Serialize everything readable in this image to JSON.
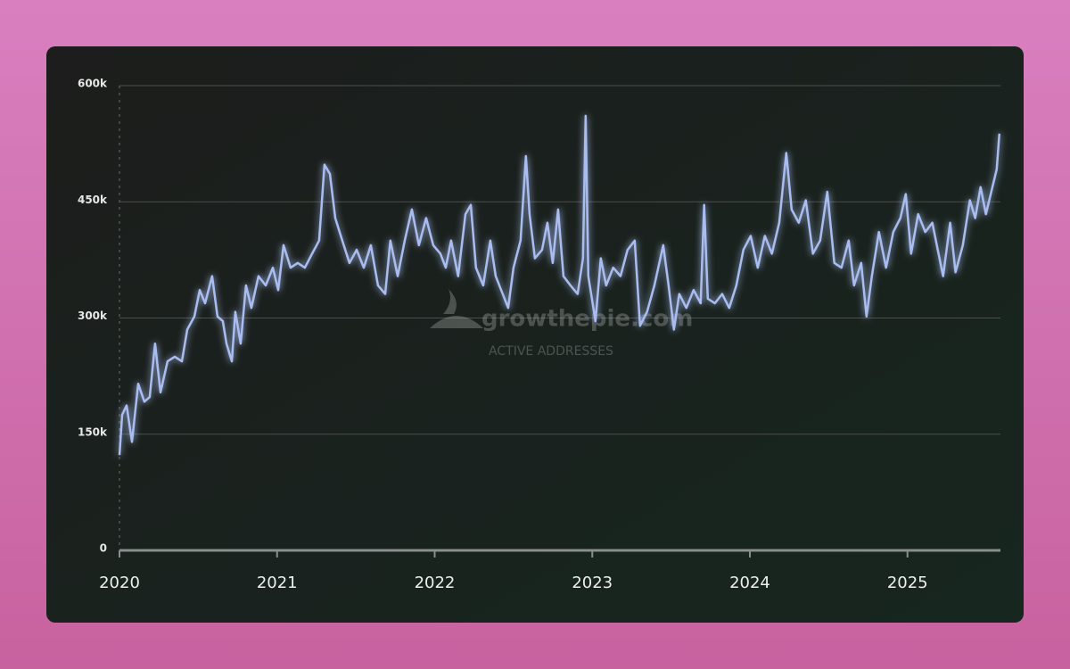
{
  "chart_data": {
    "type": "line",
    "watermark": {
      "brand": "growthepie.com",
      "metric": "ACTIVE ADDRESSES"
    },
    "color": "#a9bdf0",
    "xlim": [
      2020,
      2025.59
    ],
    "xticks": [
      2020,
      2021,
      2022,
      2023,
      2024,
      2025
    ],
    "ylim": [
      0,
      600000
    ],
    "yticks": [
      0,
      {
        "value": 150000,
        "label": "150k"
      },
      {
        "value": 300000,
        "label": "300k"
      },
      {
        "value": 450000,
        "label": "450k"
      },
      {
        "value": 600000,
        "label": "600k"
      }
    ],
    "grid": true,
    "x": [
      2020,
      2020.017,
      2020.045,
      2020.079,
      2020.119,
      2020.158,
      2020.192,
      2020.226,
      2020.26,
      2020.305,
      2020.351,
      2020.396,
      2020.43,
      2020.475,
      2020.509,
      2020.543,
      2020.588,
      2020.622,
      2020.656,
      2020.679,
      2020.713,
      2020.735,
      2020.769,
      2020.803,
      2020.837,
      2020.882,
      2020.928,
      2020.973,
      2021.007,
      2021.041,
      2021.086,
      2021.131,
      2021.176,
      2021.222,
      2021.267,
      2021.301,
      2021.335,
      2021.369,
      2021.414,
      2021.459,
      2021.505,
      2021.55,
      2021.595,
      2021.64,
      2021.686,
      2021.719,
      2021.765,
      2021.81,
      2021.855,
      2021.9,
      2021.946,
      2021.991,
      2022.036,
      2022.07,
      2022.104,
      2022.149,
      2022.195,
      2022.229,
      2022.262,
      2022.308,
      2022.353,
      2022.387,
      2022.432,
      2022.466,
      2022.5,
      2022.545,
      2022.579,
      2022.602,
      2022.636,
      2022.681,
      2022.715,
      2022.749,
      2022.783,
      2022.817,
      2022.862,
      2022.907,
      2022.941,
      2022.958,
      2022.975,
      2023.02,
      2023.054,
      2023.088,
      2023.133,
      2023.179,
      2023.224,
      2023.269,
      2023.303,
      2023.348,
      2023.394,
      2023.45,
      2023.484,
      2023.518,
      2023.552,
      2023.597,
      2023.643,
      2023.688,
      2023.71,
      2023.733,
      2023.778,
      2023.824,
      2023.869,
      2023.914,
      2023.959,
      2024.005,
      2024.05,
      2024.095,
      2024.14,
      2024.186,
      2024.231,
      2024.265,
      2024.31,
      2024.355,
      2024.4,
      2024.446,
      2024.491,
      2024.536,
      2024.581,
      2024.627,
      2024.661,
      2024.706,
      2024.74,
      2024.774,
      2024.819,
      2024.864,
      2024.91,
      2024.955,
      2024.989,
      2025.023,
      2025.068,
      2025.113,
      2025.158,
      2025.192,
      2025.226,
      2025.271,
      2025.305,
      2025.351,
      2025.396,
      2025.43,
      2025.464,
      2025.498,
      2025.532,
      2025.566,
      2025.583
    ],
    "values": [
      123000,
      175000,
      187000,
      140000,
      215000,
      192000,
      198000,
      267000,
      204000,
      244000,
      250000,
      244000,
      285000,
      302000,
      336000,
      319000,
      354000,
      302000,
      296000,
      267000,
      244000,
      308000,
      267000,
      342000,
      313000,
      354000,
      342000,
      365000,
      336000,
      394000,
      365000,
      371000,
      365000,
      383000,
      400000,
      498000,
      486000,
      429000,
      400000,
      371000,
      388000,
      365000,
      394000,
      342000,
      331000,
      400000,
      354000,
      400000,
      440000,
      394000,
      429000,
      394000,
      383000,
      365000,
      400000,
      354000,
      434000,
      446000,
      365000,
      342000,
      400000,
      354000,
      331000,
      313000,
      365000,
      400000,
      509000,
      434000,
      377000,
      388000,
      423000,
      371000,
      440000,
      354000,
      342000,
      331000,
      377000,
      561000,
      354000,
      296000,
      377000,
      342000,
      365000,
      354000,
      388000,
      400000,
      290000,
      308000,
      342000,
      394000,
      342000,
      285000,
      331000,
      313000,
      336000,
      319000,
      446000,
      325000,
      319000,
      331000,
      313000,
      342000,
      388000,
      406000,
      365000,
      406000,
      383000,
      423000,
      513000,
      440000,
      423000,
      452000,
      383000,
      400000,
      463000,
      371000,
      365000,
      400000,
      342000,
      371000,
      302000,
      354000,
      411000,
      365000,
      411000,
      429000,
      460000,
      383000,
      434000,
      411000,
      423000,
      388000,
      354000,
      423000,
      359000,
      394000,
      452000,
      429000,
      469000,
      434000,
      463000,
      492000,
      538000
    ]
  }
}
